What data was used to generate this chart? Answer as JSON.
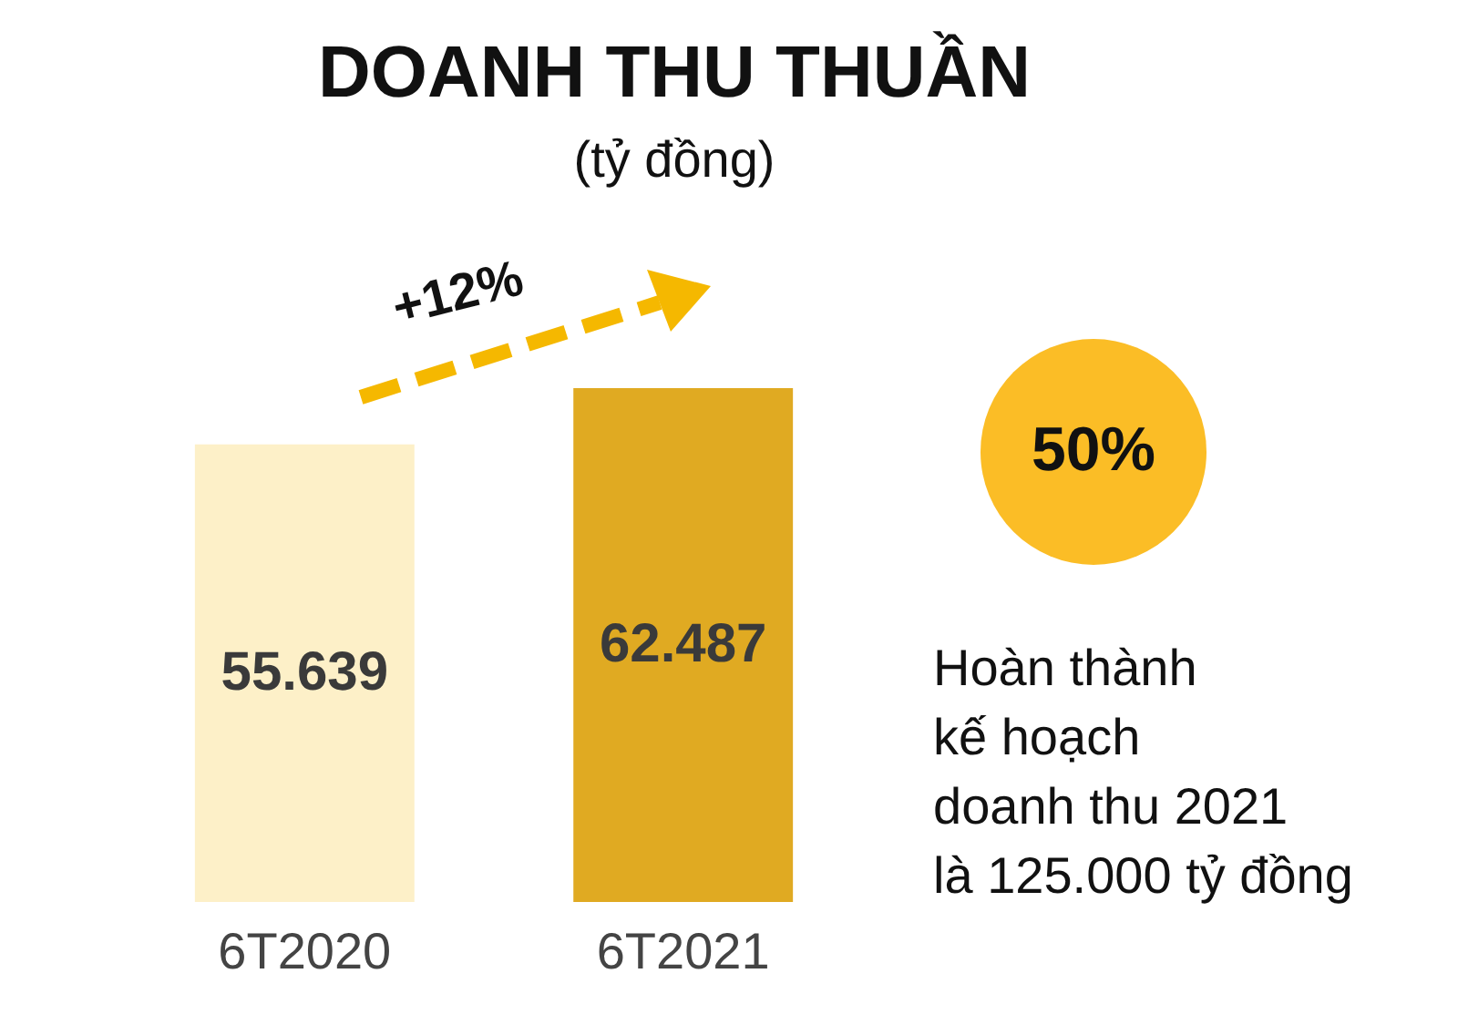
{
  "chart_data": {
    "type": "bar",
    "title": "DOANH THU THUẦN",
    "subtitle": "(tỷ đồng)",
    "categories": [
      "6T2020",
      "6T2021"
    ],
    "values": [
      55.639,
      62.487
    ],
    "colors": [
      "#fdf0c8",
      "#e0aa22"
    ],
    "data_labels": true,
    "annotations": [
      "+12%",
      "50%",
      "Hoàn thành\nkế hoạch\ndoanh thu 2021\nlà 125.000 tỷ đồng"
    ]
  }
}
